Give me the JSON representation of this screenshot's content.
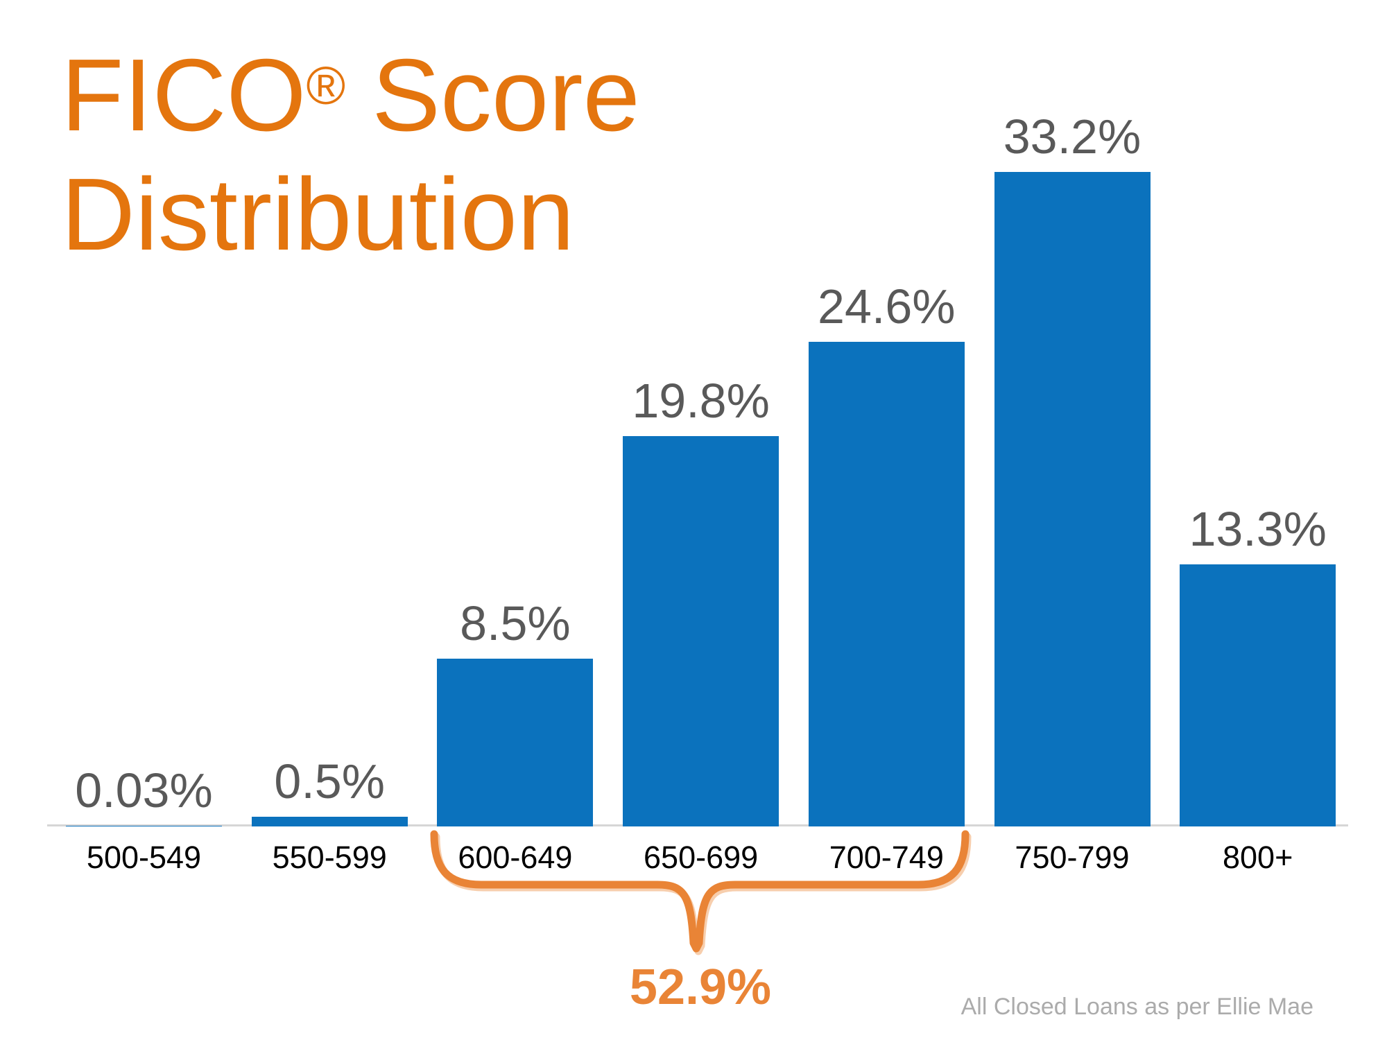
{
  "page": {
    "background": "#FFFFFF"
  },
  "title": {
    "part1": "FICO",
    "reg_mark": "®",
    "part2": "Score",
    "line2": "Distribution",
    "color": "#E4750E"
  },
  "chart_data": {
    "type": "bar",
    "title": "FICO® Score Distribution",
    "categories": [
      "500-549",
      "550-599",
      "600-649",
      "650-699",
      "700-749",
      "750-799",
      "800+"
    ],
    "values": [
      0.03,
      0.5,
      8.5,
      19.8,
      24.6,
      33.2,
      13.3
    ],
    "value_labels": [
      "0.03%",
      "0.5%",
      "8.5%",
      "19.8%",
      "24.6%",
      "33.2%",
      "13.3%"
    ],
    "xlabel": "",
    "ylabel": "",
    "ylim": [
      0,
      35
    ],
    "grid": false,
    "legend": false,
    "bar_color": "#0B72BD",
    "value_label_color": "#595959",
    "category_label_color": "#000000",
    "axis_line_color": "#D6D6D6",
    "annotation": {
      "label": "52.9%",
      "color": "#E98436",
      "covers_categories": [
        "600-649",
        "650-699",
        "700-749"
      ],
      "meaning": "combined share of 600-749 scores"
    },
    "source_note": "All Closed Loans as per Ellie Mae",
    "source_note_color": "#ABABAB"
  }
}
